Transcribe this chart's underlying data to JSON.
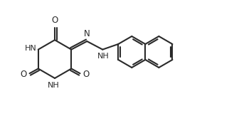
{
  "bg_color": "#ffffff",
  "line_color": "#2a2a2a",
  "line_width": 1.5,
  "figsize": [
    3.22,
    1.63
  ],
  "dpi": 100,
  "xlim": [
    0,
    10.5
  ],
  "ylim": [
    0,
    5.2
  ]
}
